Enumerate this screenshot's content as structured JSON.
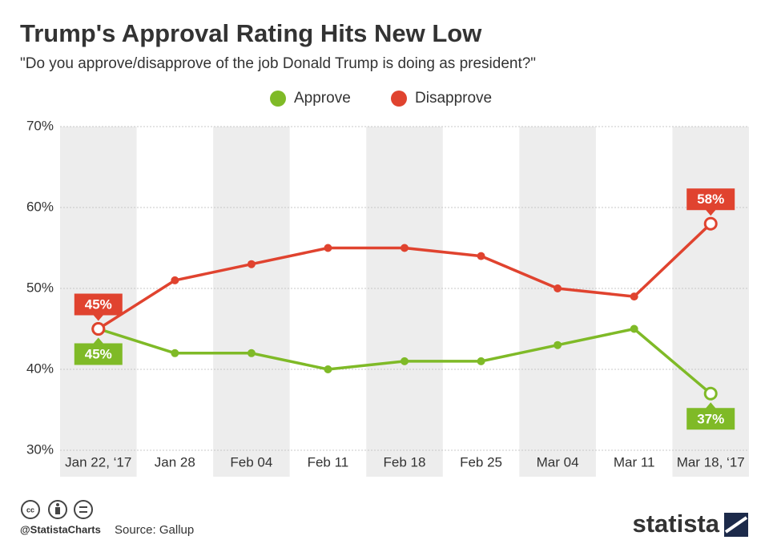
{
  "chart_data": {
    "type": "line",
    "title": "Trump's Approval Rating Hits New Low",
    "subtitle": "\"Do you approve/disapprove of the job Donald Trump is doing as president?\"",
    "categories": [
      "Jan 22, ‘17",
      "Jan 28",
      "Feb 04",
      "Feb 11",
      "Feb 18",
      "Feb 25",
      "Mar 04",
      "Mar 11",
      "Mar 18, ‘17"
    ],
    "series": [
      {
        "name": "Approve",
        "color": "#7fba27",
        "values": [
          45,
          42,
          42,
          40,
          41,
          41,
          43,
          45,
          37
        ],
        "value_labels": [
          "45%",
          null,
          null,
          null,
          null,
          null,
          null,
          null,
          "37%"
        ]
      },
      {
        "name": "Disapprove",
        "color": "#e0432f",
        "values": [
          45,
          51,
          53,
          55,
          55,
          54,
          50,
          49,
          58
        ],
        "value_labels": [
          "45%",
          null,
          null,
          null,
          null,
          null,
          null,
          null,
          "58%"
        ]
      }
    ],
    "ylim": [
      30,
      70
    ],
    "yticks": [
      {
        "value": 30,
        "label": "30%"
      },
      {
        "value": 40,
        "label": "40%"
      },
      {
        "value": 50,
        "label": "50%"
      },
      {
        "value": 60,
        "label": "60%"
      },
      {
        "value": 70,
        "label": "70%"
      }
    ],
    "grid": true,
    "legend": "top",
    "footer": {
      "handle": "@StatistaCharts",
      "source": "Source: Gallup",
      "brand": "statista"
    }
  }
}
